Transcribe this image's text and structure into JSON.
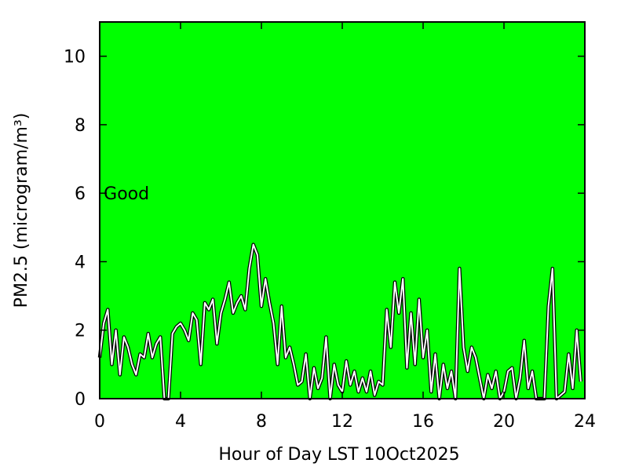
{
  "chart_data": {
    "type": "line",
    "xlabel": "Hour of Day LST 10Oct2025",
    "ylabel": "PM2.5 (microgram/m³)",
    "annotation": {
      "text": "Good",
      "x": 0.2,
      "y": 6
    },
    "background": "#00ff00",
    "xlim": [
      0,
      24
    ],
    "xticks": [
      0,
      4,
      8,
      12,
      16,
      20,
      24
    ],
    "ylim": [
      0,
      11
    ],
    "yticks": [
      0,
      2,
      4,
      6,
      8,
      10
    ],
    "x": [
      0.0,
      0.2,
      0.4,
      0.6,
      0.8,
      1.0,
      1.2,
      1.4,
      1.6,
      1.8,
      2.0,
      2.2,
      2.4,
      2.6,
      2.8,
      3.0,
      3.2,
      3.4,
      3.6,
      3.8,
      4.0,
      4.2,
      4.4,
      4.6,
      4.8,
      5.0,
      5.2,
      5.4,
      5.6,
      5.8,
      6.0,
      6.2,
      6.4,
      6.6,
      6.8,
      7.0,
      7.2,
      7.4,
      7.6,
      7.8,
      8.0,
      8.2,
      8.4,
      8.6,
      8.8,
      9.0,
      9.2,
      9.4,
      9.6,
      9.8,
      10.0,
      10.2,
      10.4,
      10.6,
      10.8,
      11.0,
      11.2,
      11.4,
      11.6,
      11.8,
      12.0,
      12.2,
      12.4,
      12.6,
      12.8,
      13.0,
      13.2,
      13.4,
      13.6,
      13.8,
      14.0,
      14.2,
      14.4,
      14.6,
      14.8,
      15.0,
      15.2,
      15.4,
      15.6,
      15.8,
      16.0,
      16.2,
      16.4,
      16.6,
      16.8,
      17.0,
      17.2,
      17.4,
      17.6,
      17.8,
      18.0,
      18.2,
      18.4,
      18.6,
      18.8,
      19.0,
      19.2,
      19.4,
      19.6,
      19.8,
      20.0,
      20.2,
      20.4,
      20.6,
      20.8,
      21.0,
      21.2,
      21.4,
      21.6,
      21.8,
      22.0,
      22.2,
      22.4,
      22.6,
      22.8,
      23.0,
      23.2,
      23.4,
      23.6,
      23.8
    ],
    "series": [
      {
        "name": "PM2.5",
        "color": "#ffffff",
        "values": [
          1.2,
          2.2,
          2.6,
          1.0,
          2.0,
          0.7,
          1.8,
          1.5,
          1.0,
          0.7,
          1.3,
          1.2,
          1.9,
          1.2,
          1.6,
          1.8,
          0,
          0,
          1.9,
          2.1,
          2.2,
          2.0,
          1.7,
          2.5,
          2.3,
          1.0,
          2.8,
          2.6,
          2.9,
          1.6,
          2.5,
          2.9,
          3.4,
          2.5,
          2.8,
          3.0,
          2.6,
          3.8,
          4.5,
          4.2,
          2.7,
          3.5,
          2.8,
          2.2,
          1.0,
          2.7,
          1.2,
          1.5,
          1.0,
          0.4,
          0.5,
          1.3,
          0,
          0.9,
          0.3,
          0.6,
          1.8,
          0,
          1.0,
          0.4,
          0.2,
          1.1,
          0.4,
          0.8,
          0.2,
          0.6,
          0.2,
          0.8,
          0.1,
          0.5,
          0.4,
          2.6,
          1.5,
          3.4,
          2.5,
          3.5,
          0.9,
          2.5,
          1.0,
          2.9,
          1.2,
          2.0,
          0.2,
          1.3,
          0,
          1.0,
          0.3,
          0.8,
          0,
          3.8,
          1.5,
          0.8,
          1.5,
          1.2,
          0.6,
          0,
          0.7,
          0.3,
          0.8,
          0,
          0.2,
          0.8,
          0.9,
          0,
          0.6,
          1.7,
          0.3,
          0.8,
          0,
          0,
          0,
          2.7,
          3.8,
          0,
          0.1,
          0.2,
          1.3,
          0.3,
          2.0,
          0.5
        ]
      }
    ]
  }
}
